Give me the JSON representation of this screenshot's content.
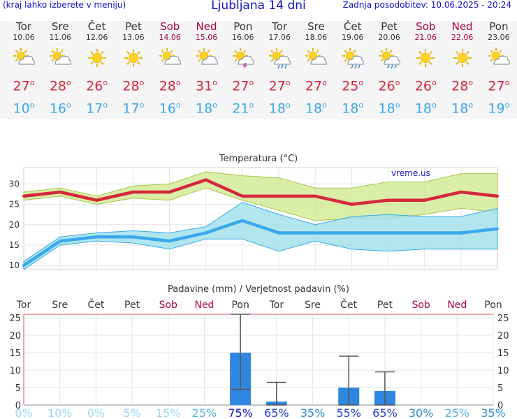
{
  "header": {
    "menu_hint": "(kraj lahko izberete v meniju)",
    "title": "Ljubljana 14 dni",
    "updated": "Zadnja posodobitev: 10.06.2025 - 20:24"
  },
  "days": [
    {
      "name": "Tor",
      "date": "10.06",
      "icon": "sun-cloud-icon",
      "tmax": "27",
      "tmin": "10",
      "weekend": false
    },
    {
      "name": "Sre",
      "date": "11.06",
      "icon": "sun-cloud-icon",
      "tmax": "28",
      "tmin": "16",
      "weekend": false
    },
    {
      "name": "Čet",
      "date": "12.06",
      "icon": "sun-icon",
      "tmax": "26",
      "tmin": "17",
      "weekend": false
    },
    {
      "name": "Pet",
      "date": "13.06",
      "icon": "sun-icon",
      "tmax": "28",
      "tmin": "17",
      "weekend": false
    },
    {
      "name": "Sob",
      "date": "14.06",
      "icon": "sun-cloud-icon",
      "tmax": "28",
      "tmin": "16",
      "weekend": true
    },
    {
      "name": "Ned",
      "date": "15.06",
      "icon": "sun-cloud-icon",
      "tmax": "31",
      "tmin": "18",
      "weekend": true
    },
    {
      "name": "Pon",
      "date": "16.06",
      "icon": "thunderstorm-icon",
      "tmax": "27",
      "tmin": "21",
      "weekend": false
    },
    {
      "name": "Tor",
      "date": "17.06",
      "icon": "sun-rain-icon",
      "tmax": "27",
      "tmin": "18",
      "weekend": false
    },
    {
      "name": "Sre",
      "date": "18.06",
      "icon": "sun-cloud-icon",
      "tmax": "27",
      "tmin": "18",
      "weekend": false
    },
    {
      "name": "Čet",
      "date": "19.06",
      "icon": "sun-rain-icon",
      "tmax": "25",
      "tmin": "18",
      "weekend": false
    },
    {
      "name": "Pet",
      "date": "20.06",
      "icon": "sun-rain-icon",
      "tmax": "26",
      "tmin": "18",
      "weekend": false
    },
    {
      "name": "Sob",
      "date": "21.06",
      "icon": "sun-icon",
      "tmax": "26",
      "tmin": "18",
      "weekend": true
    },
    {
      "name": "Ned",
      "date": "22.06",
      "icon": "sun-icon",
      "tmax": "28",
      "tmin": "18",
      "weekend": true
    },
    {
      "name": "Pon",
      "date": "23.06",
      "icon": "sun-cloud-icon",
      "tmax": "27",
      "tmin": "19",
      "weekend": false
    }
  ],
  "degree_symbol": "o",
  "colors": {
    "max": "#d4283c",
    "min": "#3aa8ea",
    "max_band": "#cde88a",
    "min_band": "#9ee0ea",
    "bar": "#2f86e0",
    "grid": "#e4e4e4"
  },
  "chart_data": [
    {
      "type": "line",
      "title": "Temperatura (°C)",
      "watermark": "vreme.us",
      "ylim": [
        9,
        34
      ],
      "yticks": [
        10,
        15,
        20,
        25,
        30
      ],
      "series": [
        {
          "key": "max",
          "values": [
            27,
            28,
            26,
            28,
            28,
            31,
            27,
            27,
            27,
            25,
            26,
            26,
            28,
            27
          ],
          "band_high": [
            28,
            29,
            27,
            29.5,
            30,
            33,
            32,
            31.5,
            29,
            29,
            30.5,
            30.5,
            32.5,
            32.5
          ],
          "band_low": [
            26,
            27,
            25,
            26.5,
            26,
            29,
            26,
            23.5,
            21,
            21.5,
            21.5,
            22.5,
            24,
            23
          ]
        },
        {
          "key": "min",
          "values": [
            10,
            16,
            17,
            17,
            16,
            18,
            21,
            18,
            18,
            18,
            18,
            18,
            18,
            19
          ],
          "band_high": [
            11,
            17,
            18,
            18.5,
            18,
            19.5,
            25.5,
            22.5,
            20,
            22,
            22.5,
            22,
            22,
            24
          ],
          "band_low": [
            9,
            15,
            16,
            15.5,
            14,
            16.5,
            16.5,
            13.5,
            16,
            14,
            13.5,
            14,
            14,
            14
          ]
        }
      ]
    },
    {
      "type": "bar",
      "title": "Padavine (mm) / Verjetnost padavin (%)",
      "ylim": [
        0,
        26
      ],
      "yticks": [
        0,
        5,
        10,
        15,
        20,
        25
      ],
      "categories": [
        "Tor",
        "Sre",
        "Čet",
        "Pet",
        "Sob",
        "Ned",
        "Pon",
        "Tor",
        "Sre",
        "Čet",
        "Pet",
        "Sob",
        "Ned",
        "Pon"
      ],
      "values": [
        0,
        0,
        0,
        0,
        0,
        0,
        15,
        1,
        0,
        5,
        4,
        0,
        0,
        0
      ],
      "error_low": [
        0,
        0,
        0,
        0,
        0,
        0,
        4.5,
        0,
        0,
        0,
        0,
        0,
        0,
        0
      ],
      "error_high": [
        0,
        0,
        0,
        0,
        0,
        0,
        26,
        6.5,
        0,
        14,
        9.5,
        0,
        0,
        0
      ],
      "probabilities": [
        "0%",
        "10%",
        "0%",
        "5%",
        "15%",
        "25%",
        "75%",
        "65%",
        "35%",
        "55%",
        "65%",
        "30%",
        "25%",
        "35%"
      ]
    }
  ]
}
